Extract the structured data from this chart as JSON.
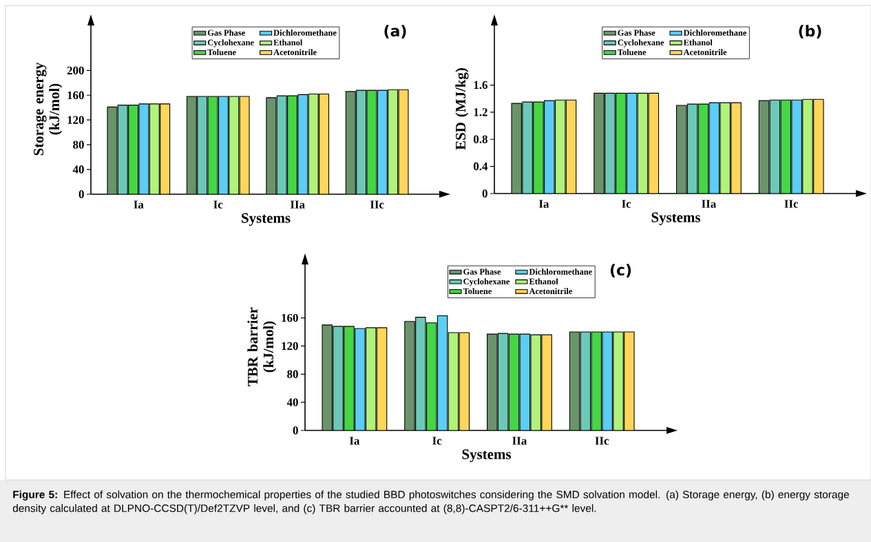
{
  "chart_data": [
    {
      "type": "bar",
      "title": "(a)",
      "xlabel": "Systems",
      "ylabel": "Storage energy (kJ/mol)",
      "categories": [
        "Ia",
        "Ic",
        "IIa",
        "IIc"
      ],
      "series": [
        {
          "name": "Gas Phase",
          "color": "#6b946b",
          "values": [
            141,
            158,
            156,
            166
          ]
        },
        {
          "name": "Cyclohexane",
          "color": "#6cc9b8",
          "values": [
            144,
            158,
            159,
            168
          ]
        },
        {
          "name": "Toluene",
          "color": "#45d645",
          "values": [
            144,
            158,
            159,
            168
          ]
        },
        {
          "name": "Dichloromethane",
          "color": "#5ccdf5",
          "values": [
            146,
            158,
            161,
            168
          ]
        },
        {
          "name": "Ethanol",
          "color": "#b0f27a",
          "values": [
            146,
            158,
            162,
            169
          ]
        },
        {
          "name": "Acetonitrile",
          "color": "#ffd659",
          "values": [
            146,
            158,
            162,
            169
          ]
        }
      ],
      "ylim": [
        0,
        275
      ],
      "yticks": [
        0,
        40,
        80,
        120,
        160,
        200
      ],
      "legend": "top",
      "annotations": [
        "**Figure 5:** Effect of solvation on the thermochemical properties of the studied BBD photoswitches considering the SMD solvation model. (a) Storage energy, (b) energy storage density calculated at DLPNO-CCSD(T)/Def2TZVP level, and (c) TBR barrier accounted at (8,8)-CASPT2/6-311++G** level."
      ]
    },
    {
      "type": "bar",
      "title": "(b)",
      "xlabel": "Systems",
      "ylabel": "ESD (MJ/kg)",
      "categories": [
        "Ia",
        "Ic",
        "IIa",
        "IIc"
      ],
      "series": [
        {
          "name": "Gas Phase",
          "color": "#6b946b",
          "values": [
            1.33,
            1.48,
            1.3,
            1.37
          ]
        },
        {
          "name": "Cyclohexane",
          "color": "#6cc9b8",
          "values": [
            1.35,
            1.48,
            1.32,
            1.38
          ]
        },
        {
          "name": "Toluene",
          "color": "#45d645",
          "values": [
            1.35,
            1.48,
            1.32,
            1.38
          ]
        },
        {
          "name": "Dichloromethane",
          "color": "#5ccdf5",
          "values": [
            1.37,
            1.48,
            1.34,
            1.38
          ]
        },
        {
          "name": "Ethanol",
          "color": "#b0f27a",
          "values": [
            1.38,
            1.48,
            1.34,
            1.39
          ]
        },
        {
          "name": "Acetonitrile",
          "color": "#ffd659",
          "values": [
            1.38,
            1.48,
            1.34,
            1.39
          ]
        }
      ],
      "ylim": [
        0,
        2.5
      ],
      "yticks": [
        0,
        0.4,
        0.8,
        1.2,
        1.6
      ],
      "legend": "top"
    },
    {
      "type": "bar",
      "title": "(c)",
      "xlabel": "Systems",
      "ylabel": "TBR barrier (kJ/mol)",
      "categories": [
        "Ia",
        "Ic",
        "IIa",
        "IIc"
      ],
      "series": [
        {
          "name": "Gas Phase",
          "color": "#6b946b",
          "values": [
            150,
            155,
            137,
            140
          ]
        },
        {
          "name": "Cyclohexane",
          "color": "#6cc9b8",
          "values": [
            148,
            161,
            138,
            140
          ]
        },
        {
          "name": "Toluene",
          "color": "#45d645",
          "values": [
            148,
            153,
            137,
            140
          ]
        },
        {
          "name": "Dichloromethane",
          "color": "#5ccdf5",
          "values": [
            145,
            163,
            137,
            140
          ]
        },
        {
          "name": "Ethanol",
          "color": "#b0f27a",
          "values": [
            146,
            139,
            136,
            140
          ]
        },
        {
          "name": "Acetonitrile",
          "color": "#ffd659",
          "values": [
            146,
            139,
            136,
            140
          ]
        }
      ],
      "ylim": [
        0,
        238
      ],
      "yticks": [
        0,
        40,
        80,
        120,
        160
      ],
      "legend": "top right"
    }
  ]
}
